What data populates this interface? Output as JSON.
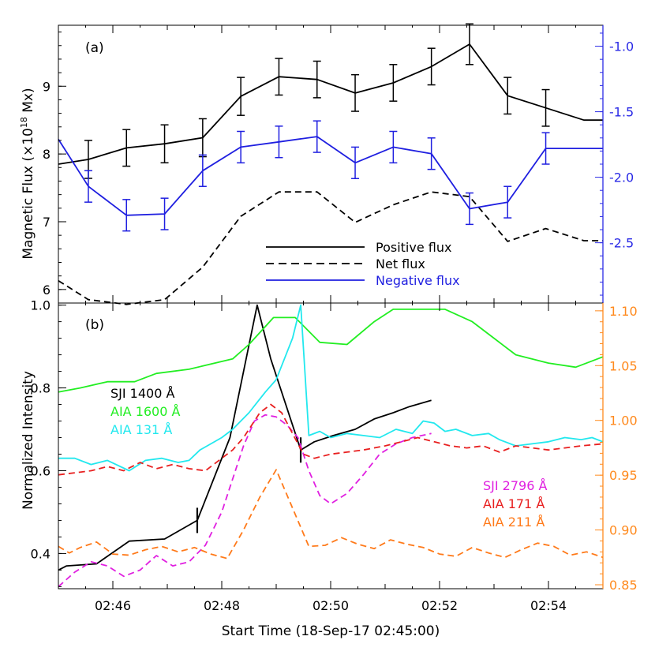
{
  "xlabel": "Start Time (18-Sep-17 02:45:00)",
  "x_tick_labels": [
    "02:46",
    "02:48",
    "02:50",
    "02:52",
    "02:54"
  ],
  "colors": {
    "black": "#000000",
    "blue": "#1f1fe0",
    "green": "#22ee22",
    "cyan": "#22e8ee",
    "red": "#e82020",
    "magenta": "#e020e0",
    "orange": "#ff7a1a",
    "right_axis_a": "#2a2ae6",
    "right_axis_b": "#ff8a1e"
  },
  "chart_data": [
    {
      "type": "line",
      "panel_label": "(a)",
      "ylabel_prefix": "Magnetic Flux (×10",
      "ylabel_sup": "18",
      "ylabel_suffix": " Mx)",
      "xlim": [
        0,
        10
      ],
      "ylim": [
        5.8,
        9.9
      ],
      "y_ticks": [
        6,
        7,
        8,
        9
      ],
      "y_tick_labels": [
        "6",
        "7",
        "8",
        "9"
      ],
      "y2lim": [
        -2.96,
        -0.84
      ],
      "y2_ticks": [
        -1.0,
        -1.5,
        -2.0,
        -2.5
      ],
      "y2_tick_labels": [
        "-1.0",
        "-1.5",
        "-2.0",
        "-2.5"
      ],
      "legend_position": "bottom-right",
      "series": [
        {
          "name": "Positive flux",
          "color": "black",
          "dash": "solid",
          "axis": "left",
          "x": [
            0,
            0.55,
            1.25,
            1.95,
            2.65,
            3.35,
            4.05,
            4.75,
            5.45,
            6.15,
            6.85,
            7.55,
            8.25,
            8.95,
            9.65,
            10
          ],
          "y": [
            7.85,
            7.92,
            8.09,
            8.15,
            8.24,
            8.85,
            9.14,
            9.1,
            8.9,
            9.05,
            9.29,
            9.62,
            8.86,
            8.68,
            8.5,
            8.5
          ],
          "err": [
            null,
            0.28,
            0.27,
            0.28,
            0.28,
            0.28,
            0.27,
            0.27,
            0.27,
            0.27,
            0.27,
            0.3,
            0.27,
            0.27,
            null,
            null
          ]
        },
        {
          "name": "Net flux",
          "color": "black",
          "dash": "dashed",
          "axis": "left",
          "x": [
            0,
            0.55,
            1.25,
            1.95,
            2.65,
            3.35,
            4.05,
            4.75,
            5.45,
            6.15,
            6.85,
            7.55,
            8.25,
            8.95,
            9.65,
            10
          ],
          "y": [
            6.13,
            5.85,
            5.78,
            5.85,
            6.33,
            7.08,
            7.44,
            7.44,
            6.99,
            7.25,
            7.44,
            7.37,
            6.71,
            6.9,
            6.72,
            6.72
          ]
        },
        {
          "name": "Negative flux",
          "color": "blue",
          "dash": "solid",
          "axis": "right",
          "x": [
            0,
            0.55,
            1.25,
            1.95,
            2.65,
            3.35,
            4.05,
            4.75,
            5.45,
            6.15,
            6.85,
            7.55,
            8.25,
            8.95,
            9.65,
            10
          ],
          "y": [
            -1.71,
            -2.07,
            -2.29,
            -2.28,
            -1.95,
            -1.77,
            -1.73,
            -1.69,
            -1.89,
            -1.77,
            -1.82,
            -2.24,
            -2.19,
            -1.78,
            -1.78,
            -1.78
          ],
          "err": [
            null,
            0.12,
            0.12,
            0.12,
            0.12,
            0.12,
            0.12,
            0.12,
            0.12,
            0.12,
            0.12,
            0.12,
            0.12,
            0.12,
            null,
            null
          ]
        }
      ]
    },
    {
      "type": "line",
      "panel_label": "(b)",
      "ylabel": "Normalized Intensity",
      "xlim": [
        0,
        10
      ],
      "ylim": [
        0.315,
        1.005
      ],
      "y_ticks": [
        0.4,
        0.6,
        0.8,
        1.0
      ],
      "y_tick_labels": [
        "0.4",
        "0.6",
        "0.8",
        "1.0"
      ],
      "y2lim": [
        0.8464,
        1.1071
      ],
      "y2_ticks": [
        0.85,
        0.9,
        0.95,
        1.0,
        1.05,
        1.1
      ],
      "y2_tick_labels": [
        "0.85",
        "0.90",
        "0.95",
        "1.00",
        "1.05",
        "1.10"
      ],
      "legend_left": [
        "SJI 1400 Å",
        "AIA 1600 Å",
        "AIA 131 Å"
      ],
      "legend_right": [
        "SJI 2796 Å",
        "AIA 171 Å",
        "AIA 211 Å"
      ],
      "series": [
        {
          "name": "SJI 1400 Å",
          "color": "black",
          "dash": "solid",
          "axis": "left",
          "x": [
            0,
            0.15,
            0.7,
            1.3,
            1.95,
            2.55,
            3.15,
            3.65,
            3.9,
            4.45,
            4.7,
            5.05,
            5.45,
            5.8,
            6.15,
            6.45,
            6.85
          ],
          "y": [
            0.36,
            0.37,
            0.375,
            0.43,
            0.435,
            0.48,
            0.68,
            1.0,
            0.87,
            0.65,
            0.67,
            0.685,
            0.7,
            0.725,
            0.74,
            0.755,
            0.77
          ],
          "markers": [
            {
              "x": 2.55,
              "y": 0.48
            },
            {
              "x": 4.45,
              "y": 0.65
            }
          ]
        },
        {
          "name": "AIA 1600 Å",
          "color": "green",
          "dash": "solid",
          "axis": "left",
          "x": [
            0,
            0.4,
            0.9,
            1.4,
            1.8,
            2.4,
            3.2,
            3.5,
            3.95,
            4.35,
            4.8,
            5.3,
            5.8,
            6.15,
            6.6,
            7.1,
            7.6,
            8,
            8.4,
            9,
            9.5,
            10
          ],
          "y": [
            0.79,
            0.8,
            0.815,
            0.815,
            0.835,
            0.845,
            0.87,
            0.905,
            0.97,
            0.97,
            0.91,
            0.905,
            0.96,
            0.99,
            0.99,
            0.99,
            0.96,
            0.92,
            0.88,
            0.86,
            0.85,
            0.875
          ]
        },
        {
          "name": "AIA 131 Å",
          "color": "cyan",
          "dash": "solid",
          "axis": "left",
          "x": [
            0,
            0.3,
            0.6,
            0.9,
            1.3,
            1.6,
            1.9,
            2.2,
            2.4,
            2.6,
            2.8,
            3.0,
            3.2,
            3.5,
            3.8,
            4.0,
            4.3,
            4.45,
            4.6,
            4.8,
            5.0,
            5.3,
            5.6,
            5.9,
            6.2,
            6.5,
            6.7,
            6.9,
            7.1,
            7.3,
            7.6,
            7.9,
            8.1,
            8.4,
            8.7,
            9.0,
            9.3,
            9.6,
            9.8,
            10
          ],
          "y": [
            0.63,
            0.63,
            0.615,
            0.625,
            0.6,
            0.625,
            0.63,
            0.62,
            0.625,
            0.65,
            0.665,
            0.68,
            0.7,
            0.74,
            0.79,
            0.82,
            0.92,
            1.0,
            0.685,
            0.695,
            0.68,
            0.69,
            0.685,
            0.68,
            0.7,
            0.69,
            0.72,
            0.715,
            0.695,
            0.7,
            0.685,
            0.69,
            0.675,
            0.66,
            0.665,
            0.67,
            0.68,
            0.675,
            0.68,
            0.67
          ]
        },
        {
          "name": "SJI 2796 Å",
          "color": "magenta",
          "dash": "dashed",
          "axis": "left",
          "x": [
            0,
            0.3,
            0.6,
            0.9,
            1.2,
            1.5,
            1.8,
            2.1,
            2.4,
            2.7,
            3.0,
            3.2,
            3.4,
            3.6,
            3.8,
            4.0,
            4.2,
            4.4,
            4.6,
            4.8,
            5.0,
            5.3,
            5.6,
            5.9,
            6.2,
            6.5,
            6.85
          ],
          "y": [
            0.32,
            0.355,
            0.38,
            0.37,
            0.345,
            0.36,
            0.395,
            0.37,
            0.38,
            0.42,
            0.5,
            0.58,
            0.66,
            0.72,
            0.735,
            0.73,
            0.71,
            0.68,
            0.6,
            0.54,
            0.52,
            0.545,
            0.59,
            0.64,
            0.665,
            0.68,
            0.69
          ]
        },
        {
          "name": "AIA 171 Å",
          "color": "red",
          "dash": "dashed",
          "axis": "left",
          "x": [
            0,
            0.3,
            0.6,
            0.9,
            1.2,
            1.5,
            1.8,
            2.1,
            2.4,
            2.7,
            3.0,
            3.2,
            3.4,
            3.7,
            3.9,
            4.1,
            4.3,
            4.5,
            4.7,
            5.0,
            5.3,
            5.6,
            6.0,
            6.3,
            6.6,
            6.9,
            7.2,
            7.5,
            7.8,
            8.1,
            8.4,
            8.7,
            9.0,
            9.3,
            9.6,
            10
          ],
          "y": [
            0.59,
            0.595,
            0.6,
            0.61,
            0.6,
            0.62,
            0.605,
            0.615,
            0.605,
            0.6,
            0.63,
            0.65,
            0.68,
            0.74,
            0.76,
            0.74,
            0.69,
            0.64,
            0.63,
            0.64,
            0.645,
            0.65,
            0.66,
            0.67,
            0.68,
            0.67,
            0.66,
            0.655,
            0.66,
            0.645,
            0.66,
            0.655,
            0.65,
            0.655,
            0.66,
            0.665
          ]
        },
        {
          "name": "AIA 211 Å",
          "color": "orange",
          "dash": "dashed",
          "axis": "right",
          "x": [
            0,
            0.2,
            0.4,
            0.7,
            1.0,
            1.3,
            1.6,
            1.9,
            2.2,
            2.5,
            2.8,
            3.1,
            3.4,
            3.7,
            4.0,
            4.3,
            4.6,
            4.9,
            5.2,
            5.5,
            5.8,
            6.1,
            6.4,
            6.7,
            7.0,
            7.3,
            7.6,
            7.9,
            8.2,
            8.5,
            8.8,
            9.1,
            9.4,
            9.7,
            10
          ],
          "y": [
            0.885,
            0.879,
            0.884,
            0.889,
            0.878,
            0.877,
            0.882,
            0.885,
            0.88,
            0.884,
            0.878,
            0.874,
            0.9,
            0.93,
            0.955,
            0.92,
            0.885,
            0.886,
            0.893,
            0.887,
            0.883,
            0.891,
            0.887,
            0.884,
            0.878,
            0.876,
            0.884,
            0.879,
            0.875,
            0.882,
            0.888,
            0.885,
            0.877,
            0.88,
            0.875
          ]
        }
      ]
    }
  ]
}
